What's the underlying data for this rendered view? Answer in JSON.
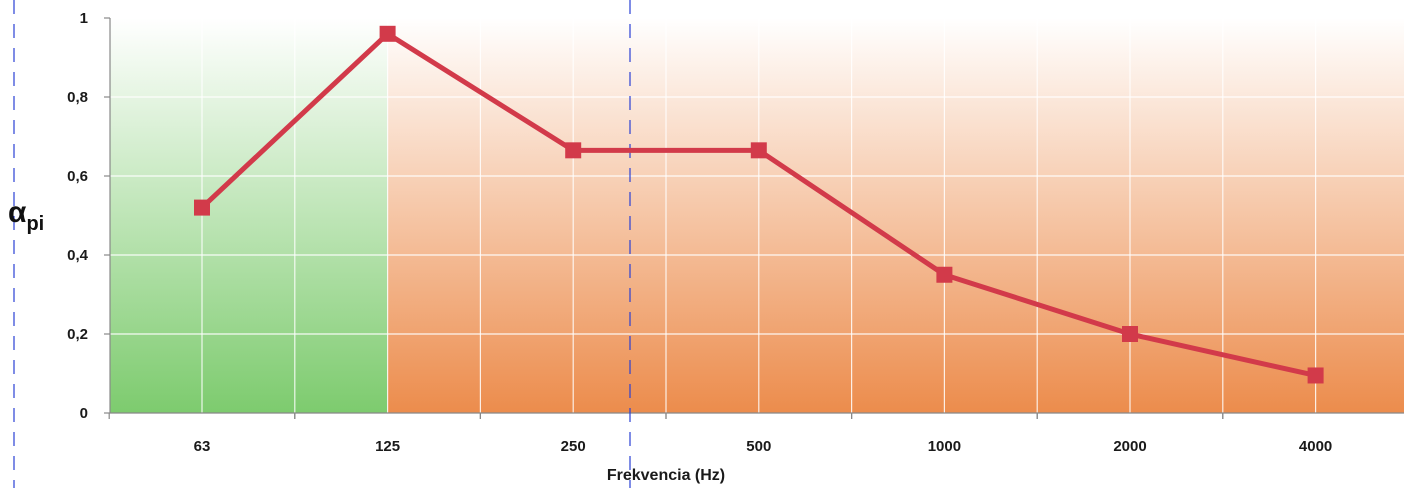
{
  "chart_data": {
    "type": "line",
    "categories": [
      "63",
      "125",
      "250",
      "500",
      "1000",
      "2000",
      "4000"
    ],
    "series": [
      {
        "values": [
          0.52,
          0.96,
          0.665,
          0.665,
          0.35,
          0.2,
          0.095
        ],
        "color": "#d23a4a",
        "marker": "square"
      }
    ],
    "xlabel": "Frekvencia (Hz)",
    "ylabel": {
      "main": "α",
      "sub": "pi"
    },
    "ylim": [
      0,
      1
    ],
    "yticks": [
      "0",
      "0,2",
      "0,4",
      "0,6",
      "0,8",
      "1"
    ],
    "grid": true,
    "background_regions": [
      {
        "name": "green-zone",
        "from_category": "63",
        "to_category": "125",
        "top_color": "#ffffff",
        "bottom_color": "#7dcb6e"
      },
      {
        "name": "orange-zone",
        "from_category": "125",
        "to_category": "4000",
        "top_color": "#ffffff",
        "bottom_color": "#ec8c4c"
      }
    ],
    "reference_lines_color": "#2a3fd4"
  }
}
